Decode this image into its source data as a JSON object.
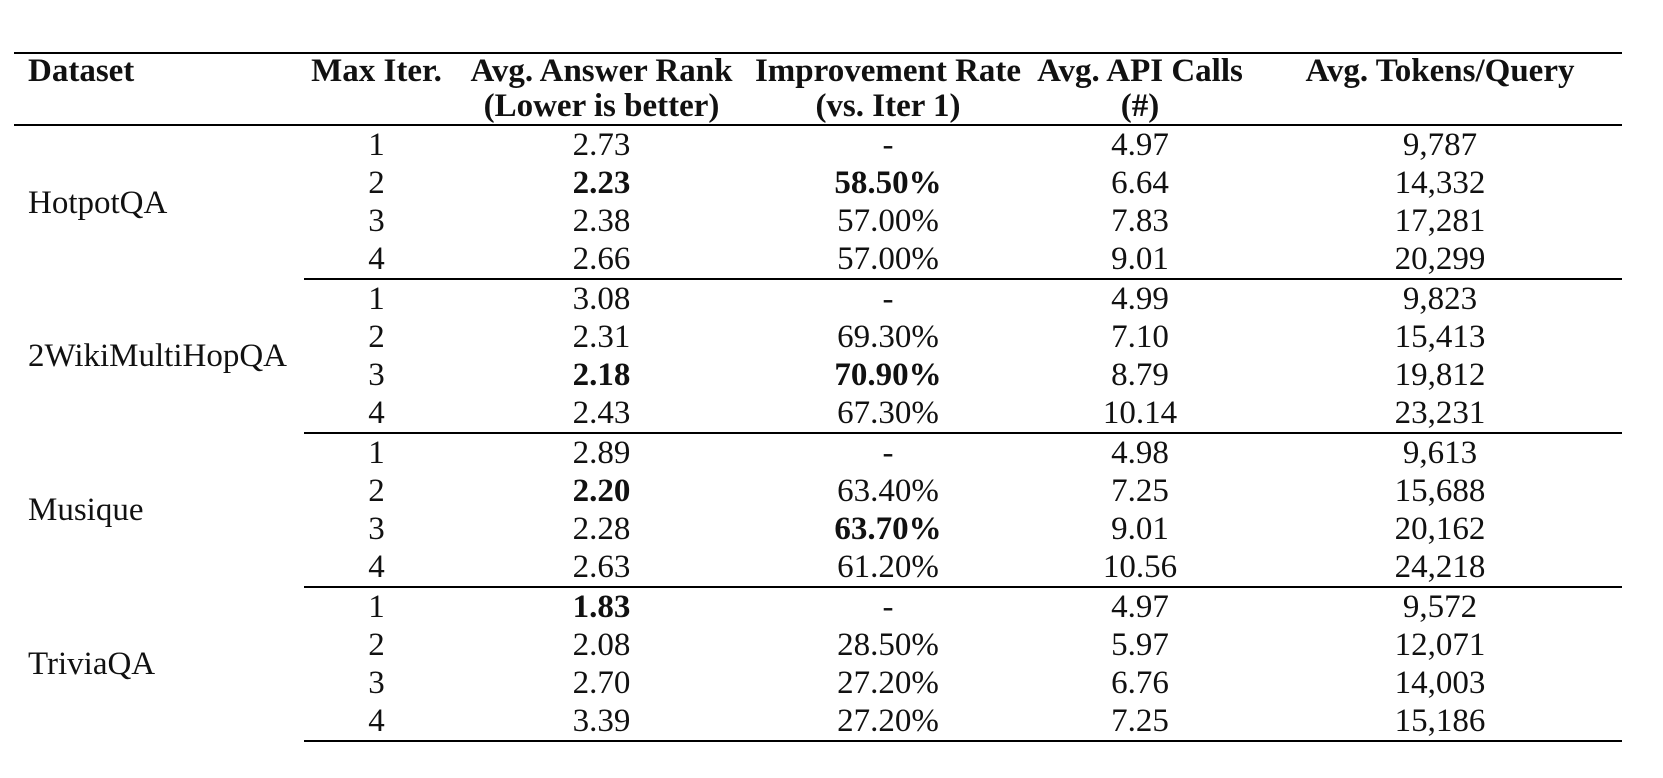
{
  "table": {
    "headers": [
      {
        "line1": "Dataset",
        "line2": ""
      },
      {
        "line1": "Max Iter.",
        "line2": ""
      },
      {
        "line1": "Avg. Answer Rank",
        "line2": "(Lower is better)"
      },
      {
        "line1": "Improvement Rate",
        "line2": "(vs. Iter 1)"
      },
      {
        "line1": "Avg. API Calls",
        "line2": "(#)"
      },
      {
        "line1": "Avg. Tokens/Query",
        "line2": ""
      }
    ],
    "groups": [
      {
        "dataset": "HotpotQA",
        "rows": [
          {
            "iter": "1",
            "rank": "2.73",
            "improvement": "-",
            "api_calls": "4.97",
            "tokens": "9,787"
          },
          {
            "iter": "2",
            "rank": "2.23",
            "improvement": "58.50%",
            "api_calls": "6.64",
            "tokens": "14,332"
          },
          {
            "iter": "3",
            "rank": "2.38",
            "improvement": "57.00%",
            "api_calls": "7.83",
            "tokens": "17,281"
          },
          {
            "iter": "4",
            "rank": "2.66",
            "improvement": "57.00%",
            "api_calls": "9.01",
            "tokens": "20,299"
          }
        ]
      },
      {
        "dataset": "2WikiMultiHopQA",
        "rows": [
          {
            "iter": "1",
            "rank": "3.08",
            "improvement": "-",
            "api_calls": "4.99",
            "tokens": "9,823"
          },
          {
            "iter": "2",
            "rank": "2.31",
            "improvement": "69.30%",
            "api_calls": "7.10",
            "tokens": "15,413"
          },
          {
            "iter": "3",
            "rank": "2.18",
            "improvement": "70.90%",
            "api_calls": "8.79",
            "tokens": "19,812"
          },
          {
            "iter": "4",
            "rank": "2.43",
            "improvement": "67.30%",
            "api_calls": "10.14",
            "tokens": "23,231"
          }
        ]
      },
      {
        "dataset": "Musique",
        "rows": [
          {
            "iter": "1",
            "rank": "2.89",
            "improvement": "-",
            "api_calls": "4.98",
            "tokens": "9,613"
          },
          {
            "iter": "2",
            "rank": "2.20",
            "improvement": "63.40%",
            "api_calls": "7.25",
            "tokens": "15,688"
          },
          {
            "iter": "3",
            "rank": "2.28",
            "improvement": "63.70%",
            "api_calls": "9.01",
            "tokens": "20,162"
          },
          {
            "iter": "4",
            "rank": "2.63",
            "improvement": "61.20%",
            "api_calls": "10.56",
            "tokens": "24,218"
          }
        ]
      },
      {
        "dataset": "TriviaQA",
        "rows": [
          {
            "iter": "1",
            "rank": "1.83",
            "improvement": "-",
            "api_calls": "4.97",
            "tokens": "9,572"
          },
          {
            "iter": "2",
            "rank": "2.08",
            "improvement": "28.50%",
            "api_calls": "5.97",
            "tokens": "12,071"
          },
          {
            "iter": "3",
            "rank": "2.70",
            "improvement": "27.20%",
            "api_calls": "6.76",
            "tokens": "14,003"
          },
          {
            "iter": "4",
            "rank": "3.39",
            "improvement": "27.20%",
            "api_calls": "7.25",
            "tokens": "15,186"
          }
        ]
      }
    ]
  }
}
